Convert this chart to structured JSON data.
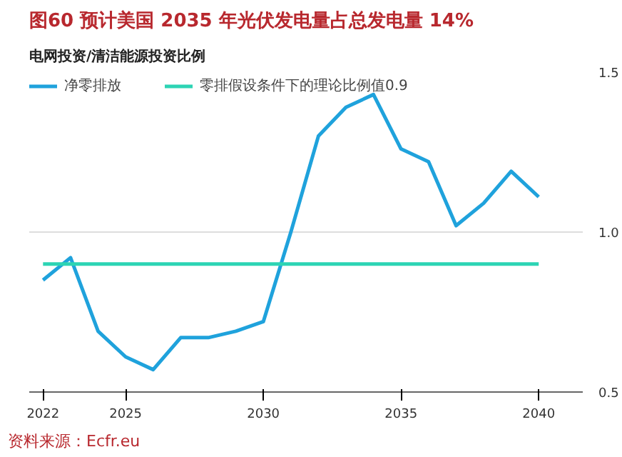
{
  "chart_data": {
    "type": "line",
    "title": "图60  预计美国 2035 年光伏发电量占总发电量 14%",
    "subtitle": "电网投资/清洁能源投资比例",
    "x": [
      2022,
      2023,
      2024,
      2025,
      2026,
      2027,
      2028,
      2029,
      2030,
      2031,
      2032,
      2033,
      2034,
      2035,
      2036,
      2037,
      2038,
      2039,
      2040
    ],
    "series": [
      {
        "name": "净零排放",
        "color": "#1fa2dc",
        "values": [
          0.85,
          0.92,
          0.69,
          0.61,
          0.57,
          0.67,
          0.67,
          0.69,
          0.72,
          1.0,
          1.3,
          1.39,
          1.43,
          1.26,
          1.22,
          1.02,
          1.09,
          1.19,
          1.11
        ]
      },
      {
        "name": "零排假设条件下的理论比例值0.9",
        "color": "#2dd4b4",
        "values": [
          0.9,
          0.9,
          0.9,
          0.9,
          0.9,
          0.9,
          0.9,
          0.9,
          0.9,
          0.9,
          0.9,
          0.9,
          0.9,
          0.9,
          0.9,
          0.9,
          0.9,
          0.9,
          0.9
        ]
      }
    ],
    "xlim": [
      2021.5,
      2041.6
    ],
    "xticks": [
      2022,
      2025,
      2030,
      2035,
      2040
    ],
    "ylim": [
      0.5,
      1.5
    ],
    "yticks": [
      {
        "value": 0.5,
        "label": "0.5"
      },
      {
        "value": 1.0,
        "label": "1.0"
      },
      {
        "value": 1.5,
        "label": "1.5"
      }
    ],
    "grid": "y",
    "legend": "top left",
    "marker": "none",
    "line_style": "solid",
    "annotations": [
      "资料来源：Ecfr.eu"
    ]
  }
}
